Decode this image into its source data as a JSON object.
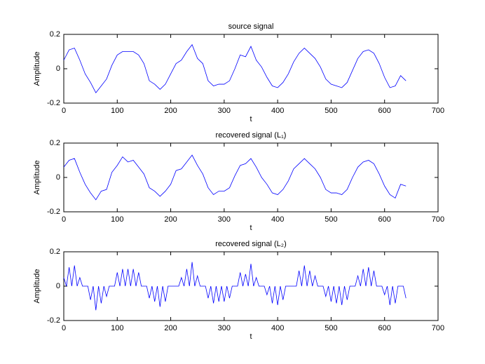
{
  "chart_data": [
    {
      "type": "line",
      "title": "source signal",
      "xlabel": "t",
      "ylabel": "Amplitude",
      "color": "#0000ff",
      "xlim": [
        0,
        700
      ],
      "ylim": [
        -0.2,
        0.2
      ],
      "xticks": [
        0,
        100,
        200,
        300,
        400,
        500,
        600,
        700
      ],
      "yticks": [
        -0.2,
        0,
        0.2
      ],
      "x": [
        0,
        10,
        20,
        30,
        40,
        50,
        60,
        70,
        80,
        90,
        100,
        110,
        120,
        130,
        140,
        150,
        160,
        170,
        180,
        190,
        200,
        210,
        220,
        230,
        240,
        250,
        260,
        270,
        280,
        290,
        300,
        310,
        320,
        330,
        340,
        350,
        360,
        370,
        380,
        390,
        400,
        410,
        420,
        430,
        440,
        450,
        460,
        470,
        480,
        490,
        500,
        510,
        520,
        530,
        540,
        550,
        560,
        570,
        580,
        590,
        600,
        610,
        620,
        630,
        640
      ],
      "values": [
        0.05,
        0.11,
        0.12,
        0.05,
        -0.03,
        -0.08,
        -0.14,
        -0.1,
        -0.06,
        0.02,
        0.08,
        0.1,
        0.1,
        0.1,
        0.08,
        0.03,
        -0.07,
        -0.09,
        -0.12,
        -0.09,
        -0.03,
        0.03,
        0.05,
        0.1,
        0.14,
        0.06,
        0.03,
        -0.07,
        -0.1,
        -0.09,
        -0.09,
        -0.07,
        0.0,
        0.08,
        0.07,
        0.13,
        0.05,
        0.01,
        -0.05,
        -0.1,
        -0.11,
        -0.08,
        -0.03,
        0.04,
        0.09,
        0.12,
        0.09,
        0.06,
        0.01,
        -0.06,
        -0.09,
        -0.1,
        -0.11,
        -0.08,
        -0.01,
        0.06,
        0.1,
        0.11,
        0.09,
        0.03,
        -0.05,
        -0.11,
        -0.1,
        -0.04,
        -0.07
      ]
    },
    {
      "type": "line",
      "title": "recovered signal (L₁)",
      "xlabel": "t",
      "ylabel": "Amplitude",
      "color": "#0000ff",
      "xlim": [
        0,
        700
      ],
      "ylim": [
        -0.2,
        0.2
      ],
      "xticks": [
        0,
        100,
        200,
        300,
        400,
        500,
        600,
        700
      ],
      "yticks": [
        -0.2,
        0,
        0.2
      ],
      "x": [
        0,
        10,
        20,
        30,
        40,
        50,
        60,
        70,
        80,
        90,
        100,
        110,
        120,
        130,
        140,
        150,
        160,
        170,
        180,
        190,
        200,
        210,
        220,
        230,
        240,
        250,
        260,
        270,
        280,
        290,
        300,
        310,
        320,
        330,
        340,
        350,
        360,
        370,
        380,
        390,
        400,
        410,
        420,
        430,
        440,
        450,
        460,
        470,
        480,
        490,
        500,
        510,
        520,
        530,
        540,
        550,
        560,
        570,
        580,
        590,
        600,
        610,
        620,
        630,
        640
      ],
      "values": [
        0.06,
        0.1,
        0.11,
        0.03,
        -0.04,
        -0.09,
        -0.13,
        -0.08,
        -0.07,
        0.03,
        0.07,
        0.12,
        0.09,
        0.1,
        0.06,
        0.02,
        -0.06,
        -0.08,
        -0.11,
        -0.08,
        -0.04,
        0.04,
        0.05,
        0.09,
        0.13,
        0.07,
        0.02,
        -0.06,
        -0.1,
        -0.08,
        -0.08,
        -0.06,
        0.01,
        0.07,
        0.08,
        0.11,
        0.06,
        0.0,
        -0.04,
        -0.09,
        -0.1,
        -0.07,
        -0.02,
        0.05,
        0.08,
        0.11,
        0.08,
        0.05,
        0.0,
        -0.07,
        -0.09,
        -0.09,
        -0.1,
        -0.07,
        0.0,
        0.06,
        0.09,
        0.1,
        0.08,
        0.02,
        -0.05,
        -0.1,
        -0.12,
        -0.04,
        -0.05
      ]
    },
    {
      "type": "line",
      "title": "recovered signal (L₂)",
      "xlabel": "t",
      "ylabel": "Amplitude",
      "color": "#0000ff",
      "xlim": [
        0,
        700
      ],
      "ylim": [
        -0.2,
        0.2
      ],
      "xticks": [
        0,
        100,
        200,
        300,
        400,
        500,
        600,
        700
      ],
      "yticks": [
        -0.2,
        0,
        0.2
      ],
      "x": [
        0,
        5,
        10,
        15,
        20,
        25,
        30,
        35,
        40,
        45,
        50,
        55,
        60,
        65,
        70,
        75,
        80,
        85,
        90,
        95,
        100,
        105,
        110,
        115,
        120,
        125,
        130,
        135,
        140,
        145,
        150,
        155,
        160,
        165,
        170,
        175,
        180,
        185,
        190,
        195,
        200,
        205,
        210,
        215,
        220,
        225,
        230,
        235,
        240,
        245,
        250,
        255,
        260,
        265,
        270,
        275,
        280,
        285,
        290,
        295,
        300,
        305,
        310,
        315,
        320,
        325,
        330,
        335,
        340,
        345,
        350,
        355,
        360,
        365,
        370,
        375,
        380,
        385,
        390,
        395,
        400,
        405,
        410,
        415,
        420,
        425,
        430,
        435,
        440,
        445,
        450,
        455,
        460,
        465,
        470,
        475,
        480,
        485,
        490,
        495,
        500,
        505,
        510,
        515,
        520,
        525,
        530,
        535,
        540,
        545,
        550,
        555,
        560,
        565,
        570,
        575,
        580,
        585,
        590,
        595,
        600,
        605,
        610,
        615,
        620,
        625,
        630,
        635,
        640
      ],
      "values": [
        0.05,
        0,
        0.11,
        0,
        0.12,
        0,
        0.05,
        0,
        0,
        0,
        -0.08,
        0,
        -0.14,
        0,
        -0.1,
        0,
        -0.06,
        0,
        0,
        0,
        0.08,
        0,
        0.1,
        0,
        0.1,
        0,
        0.1,
        0,
        0.08,
        0,
        0,
        0,
        -0.07,
        0,
        -0.09,
        0,
        -0.12,
        0,
        -0.09,
        0,
        0,
        0,
        0,
        0,
        0.05,
        0,
        0.1,
        0,
        0.14,
        0,
        0.06,
        0,
        0,
        0,
        -0.07,
        0,
        -0.1,
        0,
        -0.09,
        0,
        -0.09,
        0,
        -0.07,
        0,
        0,
        0,
        0.08,
        0,
        0.07,
        0,
        0.13,
        0,
        0.05,
        0,
        0,
        0,
        -0.05,
        0,
        -0.1,
        0,
        -0.11,
        0,
        -0.08,
        0,
        0,
        0,
        0,
        0,
        0.09,
        0,
        0.12,
        0,
        0.09,
        0,
        0.06,
        0,
        0,
        0,
        -0.06,
        0,
        -0.09,
        0,
        -0.1,
        0,
        -0.11,
        0,
        -0.08,
        0,
        0,
        0,
        0.06,
        0,
        0.1,
        0,
        0.11,
        0,
        0.09,
        0,
        0,
        0,
        -0.05,
        0,
        -0.11,
        0,
        -0.1,
        0,
        0,
        0,
        -0.07
      ]
    }
  ]
}
